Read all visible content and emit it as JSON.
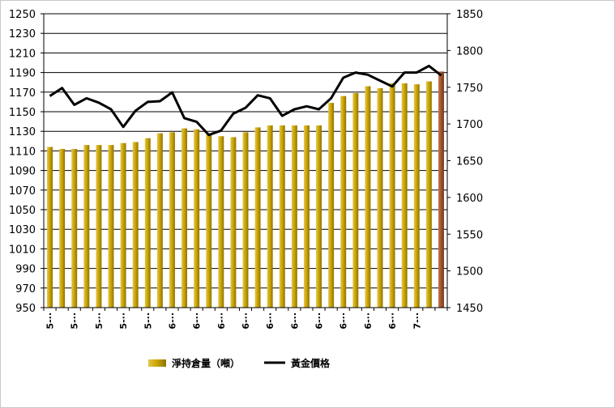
{
  "chart_data": {
    "type": "bar",
    "categories": [
      "5-·",
      "5-·",
      "5-·",
      "5-·",
      "5-·",
      "5-·",
      "5-·",
      "5-·",
      "5-·",
      "5-·",
      "5-·",
      "6-·",
      "6-·",
      "6-·",
      "6-·",
      "6-·",
      "6-·",
      "6-·",
      "6-·",
      "6-·",
      "6-·",
      "6-·",
      "6-·",
      "6-·",
      "6-·",
      "6-·",
      "6-·",
      "6-·",
      "6-·",
      "6-·",
      "6-·",
      "6-·",
      "7-·"
    ],
    "x_tick_labels": [
      "5-··",
      "5-··",
      "5-··",
      "5-··",
      "5-··",
      "6-··",
      "6-··",
      "6-··",
      "6-··",
      "6-··",
      "6-··",
      "6-··",
      "6-··",
      "6-··",
      "6-··",
      "7-··"
    ],
    "series": [
      {
        "name": "淨持倉量（噸）",
        "type": "bar",
        "axis": "left",
        "color": "#c8a400",
        "highlight_last_color": "#a0522d",
        "values": [
          1114,
          1112,
          1112,
          1116,
          1116,
          1116,
          1118,
          1119,
          1123,
          1128,
          1129,
          1133,
          1132,
          1127,
          1125,
          1124,
          1129,
          1134,
          1136,
          1136,
          1136,
          1136,
          1136,
          1159,
          1166,
          1169,
          1176,
          1174,
          1179,
          1179,
          1178,
          1181,
          1191
        ]
      },
      {
        "name": "黃金價格",
        "type": "line",
        "axis": "right",
        "color": "#000000",
        "values": [
          1738,
          1749,
          1726,
          1735,
          1729,
          1720,
          1696,
          1718,
          1730,
          1731,
          1743,
          1708,
          1703,
          1685,
          1691,
          1714,
          1722,
          1739,
          1735,
          1711,
          1720,
          1724,
          1720,
          1735,
          1763,
          1770,
          1767,
          1759,
          1751,
          1770,
          1770,
          1779,
          1766
        ]
      }
    ],
    "y_left": {
      "ticks": [
        950,
        970,
        990,
        1010,
        1030,
        1050,
        1070,
        1090,
        1110,
        1130,
        1150,
        1170,
        1190,
        1210,
        1230,
        1250
      ],
      "min": 950,
      "max": 1250
    },
    "y_right": {
      "ticks": [
        1450,
        1500,
        1550,
        1600,
        1650,
        1700,
        1750,
        1800,
        1850
      ],
      "min": 1450,
      "max": 1850
    },
    "grid": true,
    "legend_position": "bottom"
  }
}
